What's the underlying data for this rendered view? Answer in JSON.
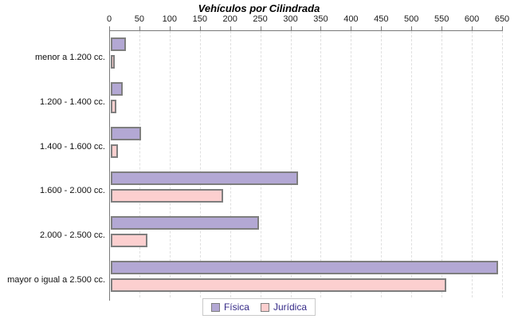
{
  "chart_data": {
    "type": "bar",
    "orientation": "horizontal",
    "title": "Vehículos por Cilindrada",
    "categories": [
      "menor a 1.200 cc.",
      "1.200 - 1.400 cc.",
      "1.400 - 1.600 cc.",
      "1.600 - 2.000 cc.",
      "2.000 - 2.500 cc.",
      "mayor o igual a 2.500 cc."
    ],
    "series": [
      {
        "name": "Física",
        "color": "#b3a8d4",
        "values": [
          20,
          14,
          45,
          305,
          240,
          635
        ]
      },
      {
        "name": "Jurídica",
        "color": "#fccfcf",
        "values": [
          1,
          4,
          6,
          180,
          55,
          550
        ]
      }
    ],
    "xlim": [
      0,
      650
    ],
    "xticks": [
      0,
      50,
      100,
      150,
      200,
      250,
      300,
      350,
      400,
      450,
      500,
      550,
      600,
      650
    ],
    "grid": "vertical-dashed",
    "legend_position": "bottom-center",
    "colors": {
      "axis": "#7a7a7a",
      "gridline": "#dfdfdf",
      "bar_border": "#7e7e7e",
      "legend_text": "#352a87",
      "title_text": "#000000"
    }
  }
}
